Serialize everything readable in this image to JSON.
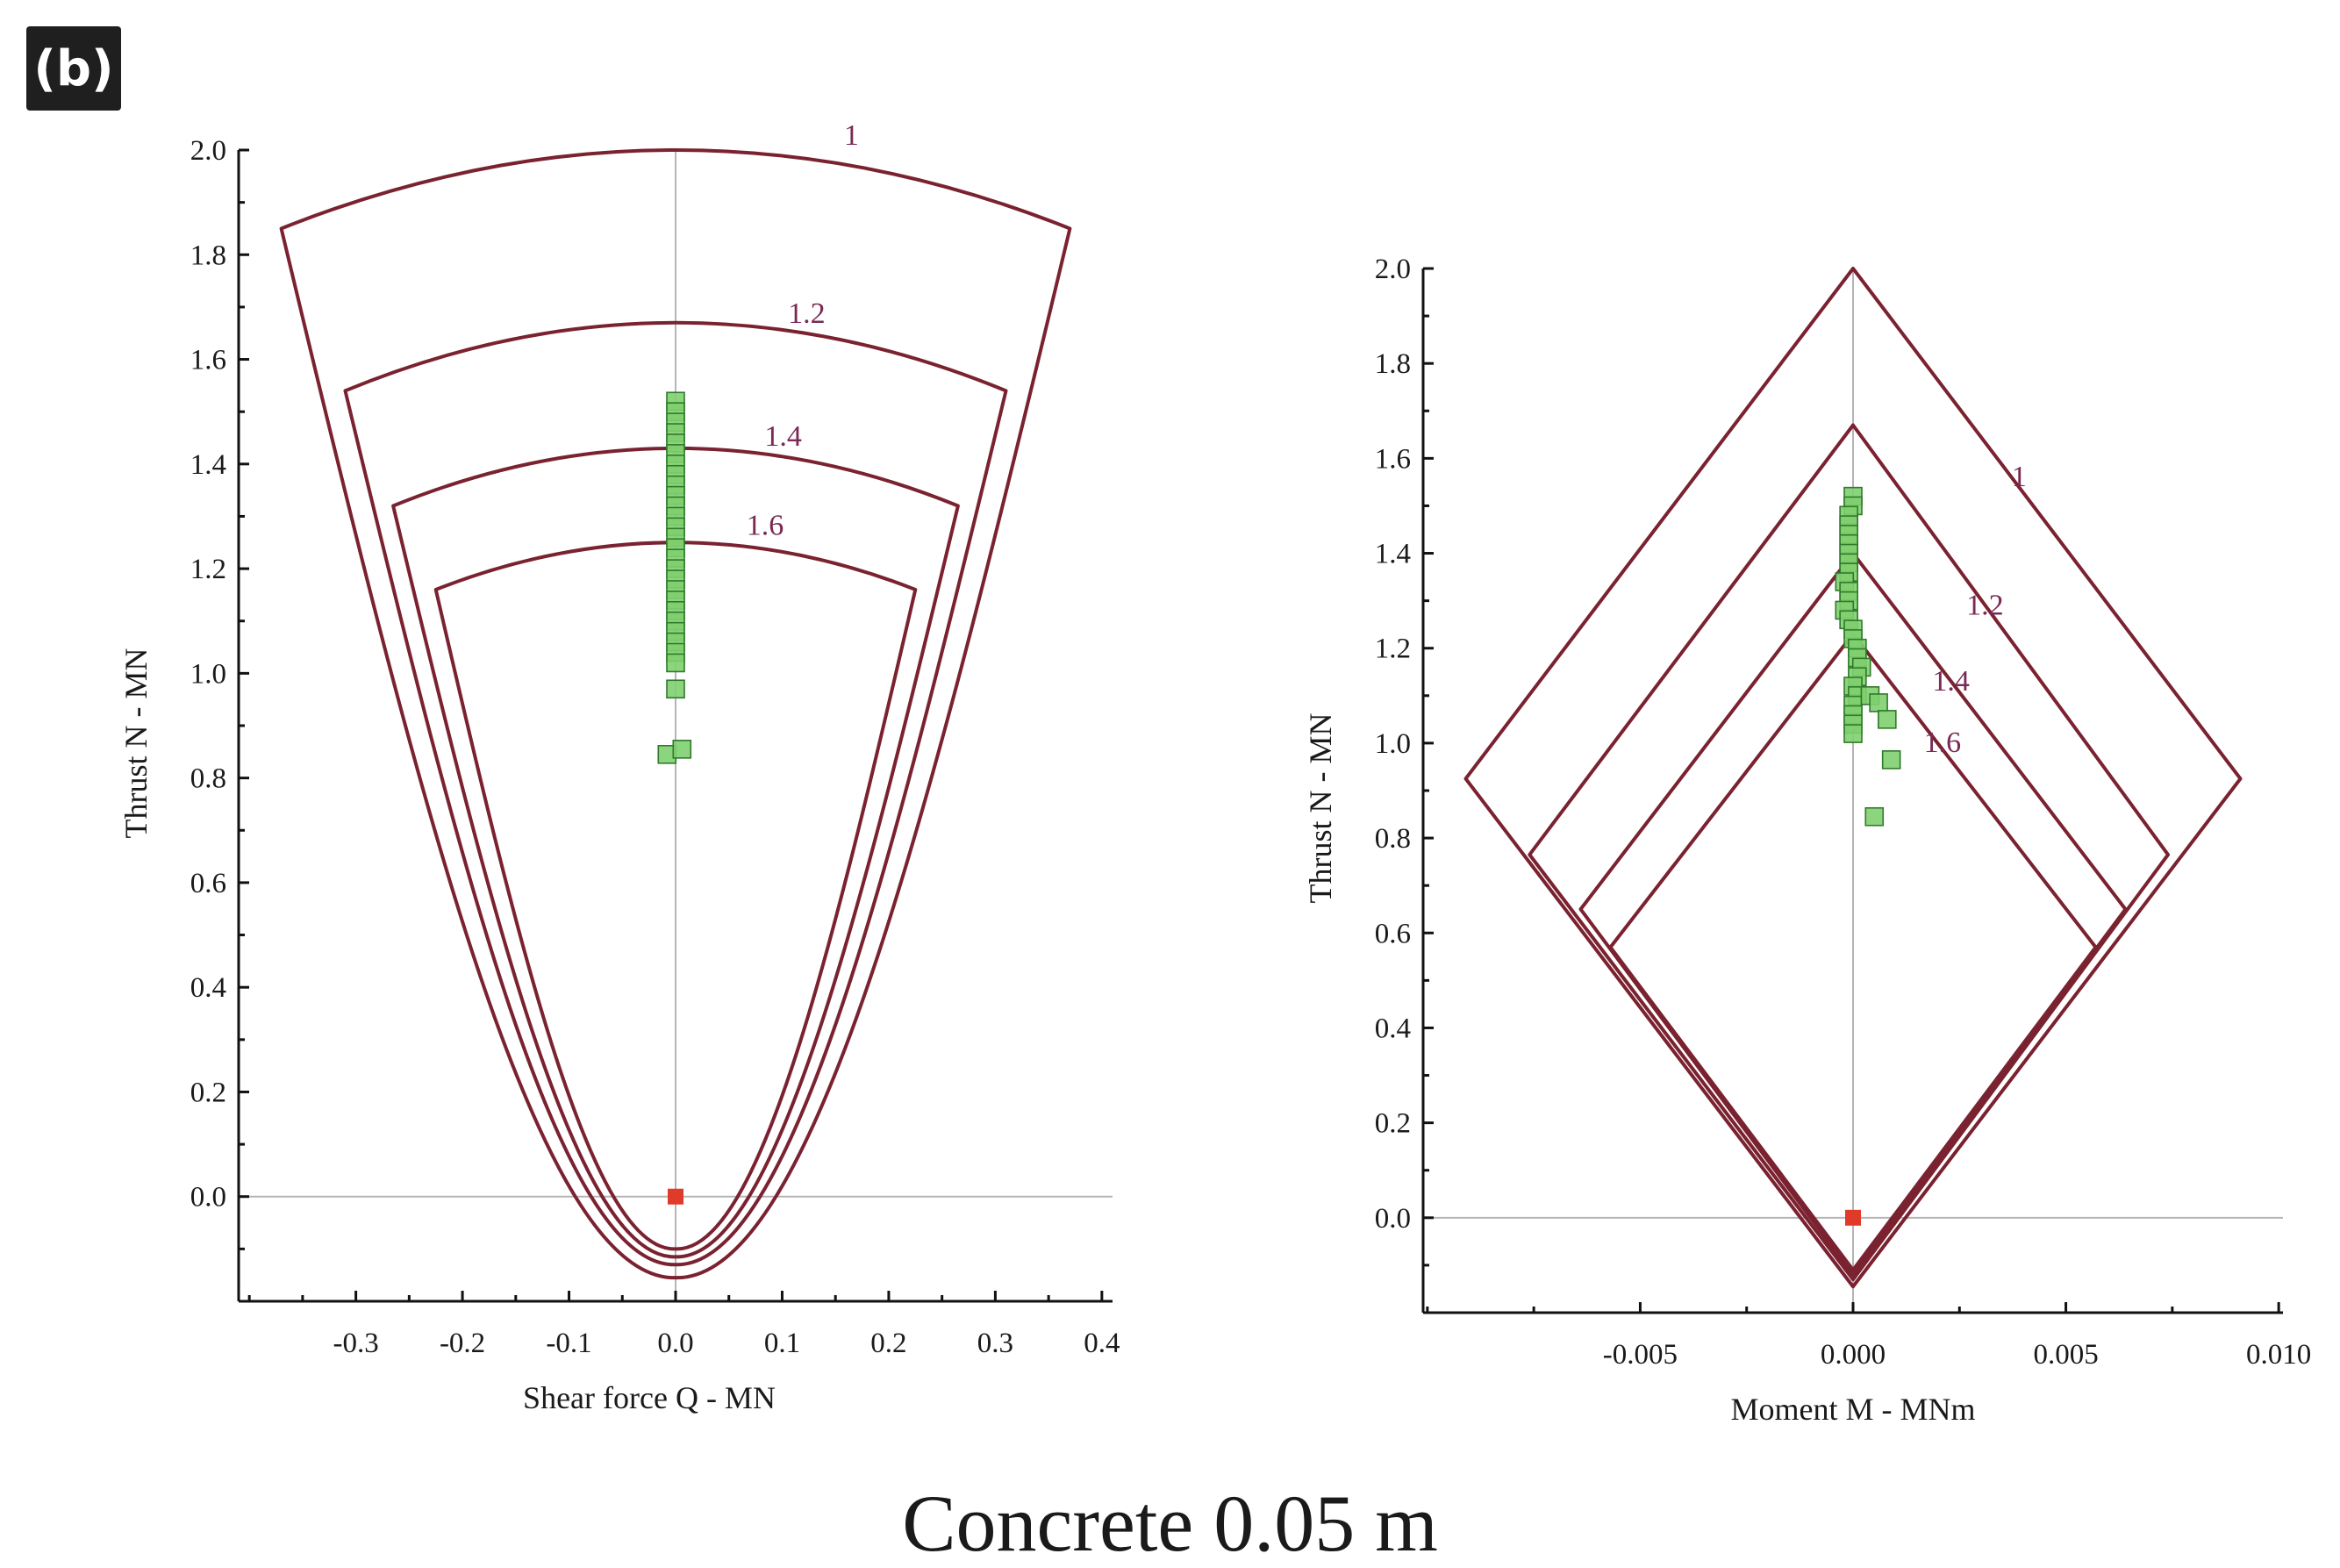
{
  "panel_label": "(b)",
  "caption": "Concrete 0.05 m",
  "colors": {
    "envelope": "#7a2230",
    "point_fill": "#7fcf6f",
    "point_stroke": "#2f7a2a",
    "origin_point": "#e03a2a",
    "axis": "#111111",
    "zero_line": "#b5b5b5",
    "curve_label": "#7a2a55"
  },
  "chart_data": [
    {
      "type": "scatter",
      "title": "",
      "xlabel": "Shear force Q - MN",
      "ylabel": "Thrust N - MN",
      "xlim": [
        -0.41,
        0.41
      ],
      "ylim": [
        -0.2,
        2.0
      ],
      "xticks": [
        -0.3,
        -0.2,
        -0.1,
        0.0,
        0.1,
        0.2,
        0.3,
        0.4
      ],
      "xtick_labels": [
        "-0.3",
        "-0.2",
        "-0.1",
        "0.0",
        "0.1",
        "0.2",
        "0.3",
        "0.4"
      ],
      "yticks": [
        0.0,
        0.2,
        0.4,
        0.6,
        0.8,
        1.0,
        1.2,
        1.4,
        1.6,
        1.8,
        2.0
      ],
      "ytick_labels": [
        "0.0",
        "0.2",
        "0.4",
        "0.6",
        "0.8",
        "1.0",
        "1.2",
        "1.4",
        "1.6",
        "1.8",
        "2.0"
      ],
      "envelopes": [
        {
          "label": "1",
          "label_at": [
            0.165,
            2.0
          ],
          "top_y": 2.0,
          "corner_x": 0.37,
          "corner_y": 1.85,
          "bottom_y": -0.155
        },
        {
          "label": "1.2",
          "label_at": [
            0.123,
            1.66
          ],
          "top_y": 1.67,
          "corner_x": 0.31,
          "corner_y": 1.54,
          "bottom_y": -0.13
        },
        {
          "label": "1.4",
          "label_at": [
            0.101,
            1.425
          ],
          "top_y": 1.43,
          "corner_x": 0.265,
          "corner_y": 1.32,
          "bottom_y": -0.115
        },
        {
          "label": "1.6",
          "label_at": [
            0.084,
            1.255
          ],
          "top_y": 1.25,
          "corner_x": 0.225,
          "corner_y": 1.16,
          "bottom_y": -0.1
        }
      ],
      "points": [
        [
          0.0,
          1.52
        ],
        [
          0.0,
          1.5
        ],
        [
          0.0,
          1.48
        ],
        [
          0.0,
          1.46
        ],
        [
          0.0,
          1.44
        ],
        [
          0.0,
          1.42
        ],
        [
          0.0,
          1.4
        ],
        [
          0.0,
          1.38
        ],
        [
          0.0,
          1.36
        ],
        [
          0.0,
          1.34
        ],
        [
          0.0,
          1.32
        ],
        [
          0.0,
          1.3
        ],
        [
          0.0,
          1.28
        ],
        [
          0.0,
          1.26
        ],
        [
          0.0,
          1.24
        ],
        [
          0.0,
          1.22
        ],
        [
          0.0,
          1.2
        ],
        [
          0.0,
          1.18
        ],
        [
          0.0,
          1.16
        ],
        [
          0.0,
          1.14
        ],
        [
          0.0,
          1.12
        ],
        [
          0.0,
          1.1
        ],
        [
          0.0,
          1.08
        ],
        [
          0.0,
          1.06
        ],
        [
          0.0,
          1.04
        ],
        [
          0.0,
          1.02
        ],
        [
          0.0,
          0.97
        ],
        [
          -0.008,
          0.845
        ],
        [
          0.006,
          0.855
        ]
      ],
      "origin_point": [
        0.0,
        0.0
      ]
    },
    {
      "type": "scatter",
      "title": "",
      "xlabel": "Moment M - MNm",
      "ylabel": "Thrust N - MN",
      "xlim": [
        -0.0101,
        0.0101
      ],
      "ylim": [
        -0.2,
        2.0
      ],
      "xticks": [
        -0.005,
        0.0,
        0.005,
        0.01
      ],
      "xtick_labels": [
        "-0.005",
        "0.000",
        "0.005",
        "0.010"
      ],
      "yticks": [
        0.0,
        0.2,
        0.4,
        0.6,
        0.8,
        1.0,
        1.2,
        1.4,
        1.6,
        1.8,
        2.0
      ],
      "ytick_labels": [
        "0.0",
        "0.2",
        "0.4",
        "0.6",
        "0.8",
        "1.0",
        "1.2",
        "1.4",
        "1.6",
        "1.8",
        "2.0"
      ],
      "envelopes": [
        {
          "label": "1",
          "label_at": [
            0.0039,
            1.53
          ],
          "top_y": 2.0,
          "left": [
            -0.0091,
            0.925
          ],
          "right": [
            0.0091,
            0.925
          ],
          "bottom_y": -0.145
        },
        {
          "label": "1.2",
          "label_at": [
            0.0031,
            1.26
          ],
          "top_y": 1.67,
          "left": [
            -0.0076,
            0.765
          ],
          "right": [
            0.0074,
            0.765
          ],
          "bottom_y": -0.13
        },
        {
          "label": "1.4",
          "label_at": [
            0.0023,
            1.1
          ],
          "top_y": 1.4,
          "left": [
            -0.0064,
            0.65
          ],
          "right": [
            0.0064,
            0.65
          ],
          "bottom_y": -0.12
        },
        {
          "label": "1.6",
          "label_at": [
            0.0021,
            0.97
          ],
          "top_y": 1.23,
          "left": [
            -0.0057,
            0.57
          ],
          "right": [
            0.0057,
            0.57
          ],
          "bottom_y": -0.11
        }
      ],
      "points": [
        [
          0.0,
          1.52
        ],
        [
          0.0,
          1.5
        ],
        [
          -0.0001,
          1.48
        ],
        [
          -0.0001,
          1.46
        ],
        [
          -0.0001,
          1.44
        ],
        [
          -0.0001,
          1.42
        ],
        [
          -0.0001,
          1.4
        ],
        [
          -0.0001,
          1.38
        ],
        [
          -0.0001,
          1.36
        ],
        [
          -0.0002,
          1.34
        ],
        [
          -0.0001,
          1.32
        ],
        [
          -0.0001,
          1.3
        ],
        [
          -0.0002,
          1.28
        ],
        [
          -0.0001,
          1.26
        ],
        [
          0.0,
          1.24
        ],
        [
          0.0,
          1.22
        ],
        [
          0.0001,
          1.2
        ],
        [
          0.0001,
          1.18
        ],
        [
          0.0002,
          1.16
        ],
        [
          0.0001,
          1.14
        ],
        [
          0.0,
          1.12
        ],
        [
          0.0001,
          1.1
        ],
        [
          0.0,
          1.08
        ],
        [
          0.0,
          1.06
        ],
        [
          0.0,
          1.04
        ],
        [
          0.0,
          1.02
        ],
        [
          0.0004,
          1.1
        ],
        [
          0.0006,
          1.085
        ],
        [
          0.0008,
          1.05
        ],
        [
          0.0009,
          0.965
        ],
        [
          0.0005,
          0.845
        ]
      ],
      "origin_point": [
        0.0,
        0.0
      ]
    }
  ]
}
